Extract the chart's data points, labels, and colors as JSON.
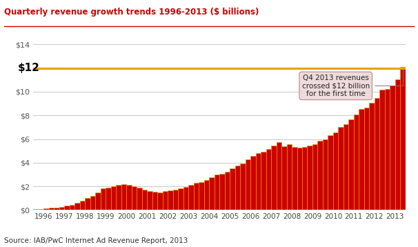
{
  "title": "Quarterly revenue growth trends 1996-2013 ($ billions)",
  "source": "Source: IAB/PwC Internet Ad Revenue Report, 2013",
  "bar_color": "#CC0000",
  "bar_edge_color": "#E8A000",
  "hline_value": 12,
  "hline_color": "#E8A000",
  "hline_label": "$12",
  "annotation_text": "Q4 2013 revenues\ncrossed $12 billion\nfor the first time",
  "ylim": [
    0,
    14
  ],
  "yticks": [
    0,
    2,
    4,
    6,
    8,
    10,
    12,
    14
  ],
  "ytick_labels": [
    "$0",
    "$2",
    "$4",
    "$6",
    "$8",
    "$10",
    "",
    "$14"
  ],
  "title_color": "#CC0000",
  "bg_color": "#FFFFFF",
  "plot_bg_color": "#FFFFFF",
  "years": [
    1996,
    1997,
    1998,
    1999,
    2000,
    2001,
    2002,
    2003,
    2004,
    2005,
    2006,
    2007,
    2008,
    2009,
    2010,
    2011,
    2012,
    2013
  ],
  "values_q": [
    [
      0.06,
      0.08,
      0.13,
      0.17
    ],
    [
      0.2,
      0.27,
      0.34,
      0.44
    ],
    [
      0.6,
      0.8,
      1.0,
      1.2
    ],
    [
      1.5,
      1.8,
      1.9,
      2.0
    ],
    [
      2.1,
      2.18,
      2.1,
      2.02
    ],
    [
      1.9,
      1.72,
      1.6,
      1.55
    ],
    [
      1.5,
      1.58,
      1.65,
      1.72
    ],
    [
      1.8,
      1.92,
      2.1,
      2.3
    ],
    [
      2.35,
      2.55,
      2.75,
      2.98
    ],
    [
      3.05,
      3.25,
      3.5,
      3.75
    ],
    [
      3.9,
      4.25,
      4.55,
      4.8
    ],
    [
      4.9,
      5.15,
      5.45,
      5.75
    ],
    [
      5.4,
      5.55,
      5.35,
      5.25
    ],
    [
      5.3,
      5.45,
      5.55,
      5.85
    ],
    [
      5.95,
      6.3,
      6.55,
      7.05
    ],
    [
      7.25,
      7.65,
      8.05,
      8.55
    ],
    [
      8.65,
      9.05,
      9.45,
      10.15
    ],
    [
      10.25,
      10.55,
      11.05,
      12.1
    ]
  ]
}
